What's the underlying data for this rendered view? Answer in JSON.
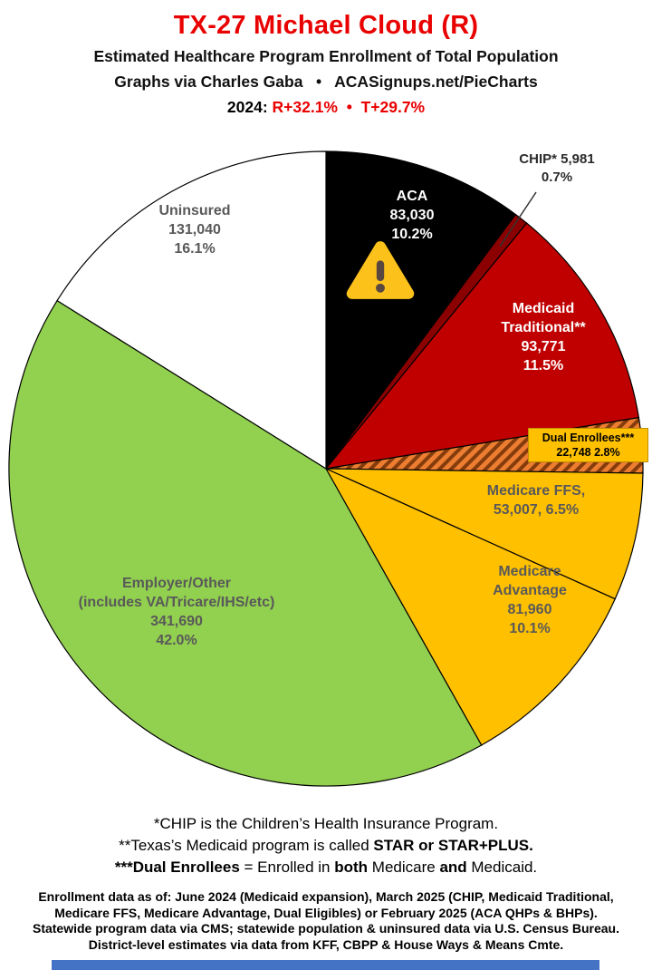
{
  "header": {
    "title": "TX-27 Michael Cloud (R)",
    "subtitle": "Estimated Healthcare Program Enrollment of Total Population",
    "credit": "Graphs via Charles Gaba   •   ACASignups.net/PieCharts",
    "partisan_segments": [
      {
        "t": "2024: ",
        "c": "#000000"
      },
      {
        "t": "R+32.1%",
        "c": "#e90000"
      },
      {
        "t": "  •  ",
        "c": "#e90000"
      },
      {
        "t": "T+29.7%",
        "c": "#e90000"
      }
    ]
  },
  "colors": {
    "title_red": "#e90000",
    "bottom_bar_blue": "#4472c4",
    "label_gray": "#595959",
    "dual_label_bg": "#ffc000"
  },
  "icons": {
    "warning-icon": "⚠"
  },
  "chart_data": {
    "type": "pie",
    "title": "TX-27 Michael Cloud (R) — Estimated Healthcare Program Enrollment of Total Population",
    "units": "people",
    "start_angle_deg": 0,
    "direction": "clockwise",
    "slices": [
      {
        "id": "aca",
        "name": "ACA",
        "value": 83030,
        "pct": 10.2,
        "color": "#000000",
        "label_lines": [
          "ACA",
          "83,030",
          "10.2%"
        ]
      },
      {
        "id": "chip",
        "name": "CHIP",
        "value": 5981,
        "pct": 0.7,
        "color": "#8b0000",
        "label_lines": [
          "CHIP* 5,981",
          "0.7%"
        ]
      },
      {
        "id": "medicaid-traditional",
        "name": "Medicaid Traditional",
        "value": 93771,
        "pct": 11.5,
        "color": "#c00000",
        "label_lines": [
          "Medicaid",
          "Traditional**",
          "93,771",
          "11.5%"
        ]
      },
      {
        "id": "dual-enrollees",
        "name": "Dual Enrollees",
        "value": 22748,
        "pct": 2.8,
        "color": "#ed7d31",
        "hatch": true,
        "hatch_color": "#843c0c",
        "label_lines": [
          "Dual Enrollees***",
          "22,748 2.8%"
        ]
      },
      {
        "id": "medicare-ffs",
        "name": "Medicare FFS",
        "value": 53007,
        "pct": 6.5,
        "color": "#ffc000",
        "label_lines": [
          "Medicare FFS,",
          "53,007, 6.5%"
        ]
      },
      {
        "id": "medicare-advantage",
        "name": "Medicare Advantage",
        "value": 81960,
        "pct": 10.1,
        "color": "#ffc000",
        "label_lines": [
          "Medicare",
          "Advantage",
          "81,960",
          "10.1%"
        ]
      },
      {
        "id": "employer-other",
        "name": "Employer/Other (includes VA/Tricare/IHS/etc)",
        "value": 341690,
        "pct": 42.0,
        "color": "#92d050",
        "label_lines": [
          "Employer/Other",
          "(includes VA/Tricare/IHS/etc)",
          "341,690",
          "42.0%"
        ]
      },
      {
        "id": "uninsured",
        "name": "Uninsured",
        "value": 131040,
        "pct": 16.1,
        "color": "#ffffff",
        "label_lines": [
          "Uninsured",
          "131,040",
          "16.1%"
        ]
      }
    ]
  },
  "footnotes": [
    [
      {
        "t": "*CHIP is the Children’s Health Insurance Program."
      }
    ],
    [
      {
        "t": "**Texas’s Medicaid program is called "
      },
      {
        "t": "STAR or STAR+PLUS.",
        "b": true
      }
    ],
    [
      {
        "t": "***Dual Enrollees",
        "b": true
      },
      {
        "t": " = Enrolled in "
      },
      {
        "t": "both",
        "b": true
      },
      {
        "t": " Medicare "
      },
      {
        "t": "and",
        "b": true
      },
      {
        "t": " Medicaid."
      }
    ]
  ],
  "footer": {
    "lines": [
      "Enrollment data as of: June 2024 (Medicaid expansion), March 2025 (CHIP, Medicaid Traditional,",
      "Medicare FFS, Medicare Advantage, Dual Eligibles) or February 2025 (ACA QHPs & BHPs).",
      "Statewide program data via CMS; statewide population & uninsured data via U.S. Census Bureau.",
      "District-level estimates via data from KFF, CBPP & House Ways & Means Cmte."
    ]
  }
}
